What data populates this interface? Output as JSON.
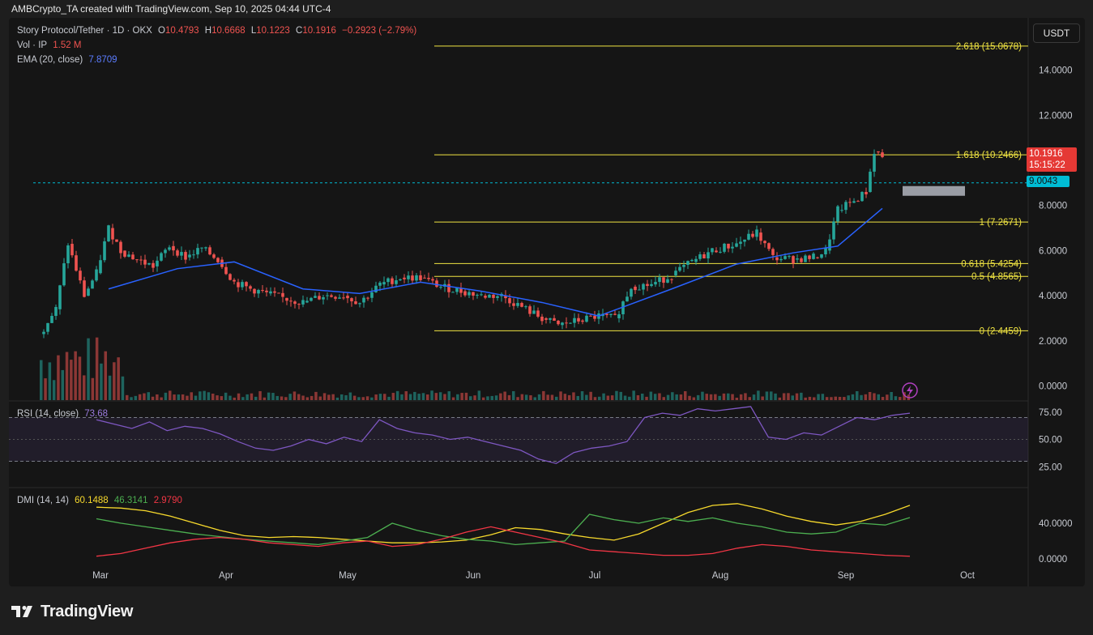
{
  "header": {
    "attribution": "AMBCrypto_TA created with TradingView.com, Sep 10, 2025 04:44 UTC-4"
  },
  "legend": {
    "symbol": "Story Protocol/Tether · 1D · OKX",
    "o_label": "O",
    "o_value": "10.4793",
    "h_label": "H",
    "h_value": "10.6668",
    "l_label": "L",
    "l_value": "10.1223",
    "c_label": "C",
    "c_value": "10.1916",
    "change": "−0.2923 (−2.79%)",
    "vol_label": "Vol · IP",
    "vol_value": "1.52 M",
    "ema_label": "EMA (20, close)",
    "ema_value": "7.8709",
    "rsi_label": "RSI (14, close)",
    "rsi_value": "73.68",
    "dmi_label": "DMI (14, 14)",
    "dmi_adx": "60.1488",
    "dmi_plus": "46.3141",
    "dmi_minus": "2.9790"
  },
  "currency_button": "USDT",
  "last_price": {
    "value": "10.1916",
    "countdown": "15:15:22"
  },
  "level_price": "9.0043",
  "footer": {
    "brand": "TradingView"
  },
  "colors": {
    "up": "#26a69a",
    "down": "#ef5350",
    "ema": "#2962ff",
    "rsi": "#7e57c2",
    "fib": "#f0e442",
    "adx": "#f7d92c",
    "di_plus": "#4caf50",
    "di_minus": "#f23645"
  },
  "chart_data": {
    "type": "candlestick",
    "price_axis_ticks": [
      "14.0000",
      "12.0000",
      "8.0000",
      "6.0000",
      "4.0000",
      "2.0000",
      "0.0000"
    ],
    "time_axis_ticks": [
      "Mar",
      "Apr",
      "May",
      "Jun",
      "Jul",
      "Aug",
      "Sep",
      "Oct"
    ],
    "fib_levels": [
      {
        "label": "2.618 (15.0678)",
        "value": 15.0678
      },
      {
        "label": "1.618 (10.2466)",
        "value": 10.2466
      },
      {
        "label": "1 (7.2671)",
        "value": 7.2671
      },
      {
        "label": "0.618 (5.4254)",
        "value": 5.4254
      },
      {
        "label": "0.5 (4.8565)",
        "value": 4.8565
      },
      {
        "label": "0 (2.4459)",
        "value": 2.4459
      }
    ],
    "horizontal_level": 9.0043,
    "close_series": [
      {
        "date": "Feb 14",
        "close": 2.3
      },
      {
        "date": "Feb 18",
        "close": 3.4
      },
      {
        "date": "Feb 21",
        "close": 6.3
      },
      {
        "date": "Feb 25",
        "close": 4.0
      },
      {
        "date": "Feb 28",
        "close": 5.0
      },
      {
        "date": "Mar 3",
        "close": 7.0
      },
      {
        "date": "Mar 6",
        "close": 6.0
      },
      {
        "date": "Mar 10",
        "close": 5.6
      },
      {
        "date": "Mar 14",
        "close": 5.3
      },
      {
        "date": "Mar 18",
        "close": 6.2
      },
      {
        "date": "Mar 22",
        "close": 5.7
      },
      {
        "date": "Mar 26",
        "close": 6.1
      },
      {
        "date": "Mar 30",
        "close": 5.6
      },
      {
        "date": "Apr 3",
        "close": 4.6
      },
      {
        "date": "Apr 7",
        "close": 4.3
      },
      {
        "date": "Apr 11",
        "close": 4.1
      },
      {
        "date": "Apr 15",
        "close": 3.9
      },
      {
        "date": "Apr 20",
        "close": 3.7
      },
      {
        "date": "Apr 25",
        "close": 4.0
      },
      {
        "date": "Apr 30",
        "close": 4.0
      },
      {
        "date": "May 4",
        "close": 3.7
      },
      {
        "date": "May 9",
        "close": 4.5
      },
      {
        "date": "May 14",
        "close": 4.8
      },
      {
        "date": "May 19",
        "close": 4.8
      },
      {
        "date": "May 24",
        "close": 4.4
      },
      {
        "date": "May 29",
        "close": 4.2
      },
      {
        "date": "Jun 3",
        "close": 4.0
      },
      {
        "date": "Jun 8",
        "close": 4.0
      },
      {
        "date": "Jun 13",
        "close": 3.5
      },
      {
        "date": "Jun 18",
        "close": 3.0
      },
      {
        "date": "Jun 22",
        "close": 2.7
      },
      {
        "date": "Jun 27",
        "close": 2.9
      },
      {
        "date": "Jul 2",
        "close": 3.1
      },
      {
        "date": "Jul 6",
        "close": 3.0
      },
      {
        "date": "Jul 10",
        "close": 4.4
      },
      {
        "date": "Jul 15",
        "close": 4.5
      },
      {
        "date": "Jul 20",
        "close": 4.9
      },
      {
        "date": "Jul 25",
        "close": 5.5
      },
      {
        "date": "Jul 30",
        "close": 6.0
      },
      {
        "date": "Aug 5",
        "close": 6.3
      },
      {
        "date": "Aug 10",
        "close": 6.8
      },
      {
        "date": "Aug 14",
        "close": 5.7
      },
      {
        "date": "Aug 19",
        "close": 5.6
      },
      {
        "date": "Aug 24",
        "close": 5.7
      },
      {
        "date": "Aug 27",
        "close": 6.0
      },
      {
        "date": "Aug 30",
        "close": 7.8
      },
      {
        "date": "Sep 3",
        "close": 8.2
      },
      {
        "date": "Sep 6",
        "close": 8.6
      },
      {
        "date": "Sep 8",
        "close": 10.4
      },
      {
        "date": "Sep 10",
        "close": 10.1916
      }
    ],
    "ema20": [
      {
        "date": "Mar 3",
        "value": 4.3
      },
      {
        "date": "Mar 20",
        "value": 5.2
      },
      {
        "date": "Apr 3",
        "value": 5.5
      },
      {
        "date": "Apr 20",
        "value": 4.3
      },
      {
        "date": "May 4",
        "value": 4.1
      },
      {
        "date": "May 19",
        "value": 4.6
      },
      {
        "date": "Jun 3",
        "value": 4.2
      },
      {
        "date": "Jun 18",
        "value": 3.7
      },
      {
        "date": "Jul 2",
        "value": 3.1
      },
      {
        "date": "Jul 20",
        "value": 4.3
      },
      {
        "date": "Aug 5",
        "value": 5.4
      },
      {
        "date": "Aug 19",
        "value": 5.9
      },
      {
        "date": "Aug 30",
        "value": 6.2
      },
      {
        "date": "Sep 10",
        "value": 7.8709
      }
    ],
    "rsi": {
      "axis_ticks": [
        "75.00",
        "50.00",
        "25.00"
      ],
      "last": 73.68,
      "values": [
        68,
        64,
        60,
        66,
        58,
        62,
        60,
        55,
        48,
        42,
        40,
        44,
        50,
        46,
        52,
        48,
        68,
        60,
        56,
        54,
        50,
        52,
        48,
        44,
        40,
        32,
        28,
        38,
        42,
        44,
        48,
        70,
        74,
        72,
        78,
        76,
        78,
        80,
        52,
        50,
        56,
        54,
        62,
        70,
        68,
        72,
        74
      ]
    },
    "dmi": {
      "axis_ticks": [
        "40.0000",
        "0.0000"
      ],
      "adx": [
        58,
        57,
        54,
        48,
        40,
        32,
        26,
        24,
        25,
        24,
        22,
        20,
        18,
        18,
        19,
        21,
        27,
        35,
        33,
        28,
        24,
        21,
        28,
        40,
        52,
        60,
        62,
        56,
        48,
        42,
        38,
        42,
        50,
        60.1488
      ],
      "di_plus": [
        45,
        40,
        36,
        32,
        28,
        25,
        22,
        20,
        18,
        16,
        20,
        24,
        40,
        32,
        26,
        22,
        20,
        16,
        18,
        20,
        50,
        44,
        40,
        46,
        42,
        46,
        40,
        36,
        30,
        28,
        30,
        40,
        38,
        46.3141
      ],
      "di_minus": [
        3,
        6,
        12,
        18,
        22,
        24,
        22,
        18,
        16,
        14,
        18,
        20,
        14,
        16,
        22,
        30,
        36,
        30,
        24,
        18,
        10,
        8,
        6,
        4,
        4,
        6,
        12,
        16,
        14,
        10,
        8,
        6,
        4,
        2.979
      ]
    }
  }
}
